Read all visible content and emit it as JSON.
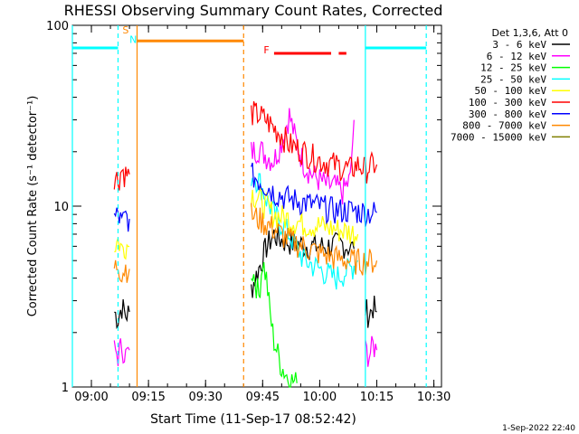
{
  "chart_data": {
    "type": "line",
    "title": "RHESSI Observing Summary Count Rates, Corrected",
    "xlabel": "Start Time (11-Sep-17 08:52:42)",
    "ylabel": "Corrected Count Rate (s⁻¹ detector⁻¹)",
    "yscale": "log",
    "ylim": [
      1,
      100
    ],
    "xlim": [
      "08:55",
      "10:32"
    ],
    "x_ticks": [
      "09:00",
      "09:15",
      "09:30",
      "09:45",
      "10:00",
      "10:15",
      "10:30"
    ],
    "y_ticks": [
      "1",
      "10",
      "100"
    ],
    "timestamp": "1-Sep-2022 22:40",
    "legend": {
      "header": "Det 1,3,6, Att 0",
      "position": "right"
    },
    "series": [
      {
        "name": "3 - 6 keV",
        "color": "#000000",
        "segments": [
          {
            "x": [
              "09:06:00",
              "09:07:00",
              "09:08:00",
              "09:09:00",
              "09:10:00"
            ],
            "y": [
              2.6,
              2.4,
              2.8,
              2.5,
              2.6
            ]
          },
          {
            "x": [
              "09:42:00",
              "09:44:00",
              "09:46:00",
              "09:48:00",
              "09:50:00",
              "09:54:00",
              "09:58:00",
              "10:02:00",
              "10:06:00",
              "10:09:00"
            ],
            "y": [
              3.5,
              4.5,
              6.0,
              7.0,
              6.5,
              6.2,
              6.0,
              6.0,
              6.2,
              5.8
            ]
          },
          {
            "x": [
              "10:12:00",
              "10:13:00",
              "10:14:00",
              "10:15:00"
            ],
            "y": [
              2.7,
              2.5,
              2.8,
              2.6
            ]
          }
        ]
      },
      {
        "name": "6 - 12 keV",
        "color": "#ff00ff",
        "segments": [
          {
            "x": [
              "09:06:00",
              "09:07:00",
              "09:08:00",
              "09:09:00",
              "09:10:00"
            ],
            "y": [
              1.6,
              1.5,
              1.7,
              1.5,
              1.6
            ]
          },
          {
            "x": [
              "09:42:00",
              "09:44:00",
              "09:46:00",
              "09:48:00",
              "09:50:00",
              "09:52:00",
              "09:54:00",
              "09:56:00",
              "09:58:00",
              "10:00:00",
              "10:02:00",
              "10:04:00",
              "10:06:00",
              "10:08:00",
              "10:09:00"
            ],
            "y": [
              20,
              21,
              19,
              18,
              23,
              32,
              22,
              17,
              15,
              14,
              13,
              13,
              12,
              14,
              30
            ]
          },
          {
            "x": [
              "10:12:00",
              "10:13:00",
              "10:14:00",
              "10:15:00"
            ],
            "y": [
              1.6,
              1.5,
              1.7,
              1.6
            ]
          }
        ]
      },
      {
        "name": "12 - 25 keV",
        "color": "#00ff00",
        "segments": [
          {
            "x": [
              "09:42:00",
              "09:43:00",
              "09:44:00",
              "09:45:00",
              "09:46:00",
              "09:47:00",
              "09:48:00",
              "09:50:00",
              "09:52:00",
              "09:54:00"
            ],
            "y": [
              4.5,
              4.0,
              3.2,
              5.0,
              4.0,
              2.5,
              1.8,
              1.3,
              1.1,
              1.05
            ]
          }
        ]
      },
      {
        "name": "25 - 50 keV",
        "color": "#00ffff",
        "segments": [
          {
            "x": [
              "09:42:00",
              "09:44:00",
              "09:46:00",
              "09:48:00",
              "09:50:00",
              "09:52:00",
              "09:56:00",
              "10:00:00",
              "10:04:00",
              "10:08:00",
              "10:10:00"
            ],
            "y": [
              15,
              14,
              11,
              9,
              8,
              7,
              5,
              4.5,
              4,
              4.5,
              5
            ]
          }
        ]
      },
      {
        "name": "50 - 100 keV",
        "color": "#ffff00",
        "segments": [
          {
            "x": [
              "09:06:00",
              "09:07:00",
              "09:08:00",
              "09:09:00",
              "09:10:00"
            ],
            "y": [
              6,
              6.5,
              5.8,
              6.2,
              6
            ]
          },
          {
            "x": [
              "09:42:00",
              "09:44:00",
              "09:46:00",
              "09:48:00",
              "09:52:00",
              "09:56:00",
              "10:00:00",
              "10:04:00",
              "10:08:00",
              "10:10:00"
            ],
            "y": [
              12,
              11,
              10,
              9,
              8.5,
              8,
              7.8,
              7.5,
              7.2,
              7
            ]
          }
        ]
      },
      {
        "name": "100 - 300 keV",
        "color": "#ff0000",
        "segments": [
          {
            "x": [
              "09:06:00",
              "09:07:00",
              "09:08:00",
              "09:09:00",
              "09:10:00"
            ],
            "y": [
              15,
              14,
              16,
              15,
              15
            ]
          },
          {
            "x": [
              "09:42:00",
              "09:44:00",
              "09:46:00",
              "09:48:00",
              "09:50:00",
              "09:52:00",
              "09:56:00",
              "10:00:00",
              "10:04:00",
              "10:08:00",
              "10:10:00",
              "10:12:00",
              "10:14:00",
              "10:15:00"
            ],
            "y": [
              33,
              32,
              30,
              27,
              25,
              22,
              20,
              18,
              17,
              16,
              17,
              16,
              17,
              17
            ]
          }
        ]
      },
      {
        "name": "300 - 800 keV",
        "color": "#0000ff",
        "segments": [
          {
            "x": [
              "09:06:00",
              "09:07:00",
              "09:08:00",
              "09:09:00",
              "09:10:00"
            ],
            "y": [
              8.5,
              9,
              8,
              8.8,
              8.5
            ]
          },
          {
            "x": [
              "09:42:00",
              "09:44:00",
              "09:46:00",
              "09:48:00",
              "09:52:00",
              "09:56:00",
              "10:00:00",
              "10:04:00",
              "10:08:00",
              "10:12:00",
              "10:15:00"
            ],
            "y": [
              15,
              14,
              13,
              12,
              11,
              10.5,
              10,
              9.5,
              9.5,
              9.3,
              9.2
            ]
          }
        ]
      },
      {
        "name": "800 - 7000 keV",
        "color": "#ff8800",
        "segments": [
          {
            "x": [
              "09:06:00",
              "09:07:00",
              "09:08:00",
              "09:09:00",
              "09:10:00"
            ],
            "y": [
              4.5,
              4.8,
              4.3,
              4.6,
              4.5
            ]
          },
          {
            "x": [
              "09:42:00",
              "09:44:00",
              "09:46:00",
              "09:48:00",
              "09:52:00",
              "09:56:00",
              "10:00:00",
              "10:04:00",
              "10:08:00",
              "10:12:00",
              "10:15:00"
            ],
            "y": [
              9,
              8.5,
              8,
              7.5,
              6.5,
              6,
              5.5,
              5.2,
              5,
              5,
              5
            ]
          }
        ]
      },
      {
        "name": "7000 - 15000 keV",
        "color": "#808000",
        "segments": []
      }
    ],
    "overlays": [
      {
        "kind": "hline",
        "color": "#00ffff",
        "y": 75,
        "segments": [
          [
            "08:55",
            "09:07"
          ],
          [
            "10:12",
            "10:28"
          ]
        ]
      },
      {
        "kind": "hline",
        "color": "#ff8800",
        "y": 82,
        "segments": [
          [
            "09:12",
            "09:40"
          ]
        ]
      },
      {
        "kind": "hline",
        "color": "#ff0000",
        "y": 70,
        "segments": [
          [
            "09:48",
            "10:03"
          ],
          [
            "10:05",
            "10:07"
          ]
        ]
      },
      {
        "kind": "vline",
        "color": "#00ffff",
        "dashed": true,
        "x": "09:07"
      },
      {
        "kind": "vline",
        "color": "#ff8800",
        "dashed": false,
        "x": "09:12"
      },
      {
        "kind": "vline",
        "color": "#ff8800",
        "dashed": true,
        "x": "09:40"
      },
      {
        "kind": "vline",
        "color": "#00ffff",
        "dashed": false,
        "x": "10:12"
      },
      {
        "kind": "vline",
        "color": "#00ffff",
        "dashed": true,
        "x": "10:28"
      },
      {
        "kind": "vline",
        "color": "#00ffff",
        "dashed": false,
        "x": "08:55"
      }
    ],
    "annotations": [
      {
        "text": "S",
        "color": "#ff8800",
        "x": "09:09",
        "y": 90
      },
      {
        "text": "N",
        "color": "#00ffff",
        "x": "09:11",
        "y": 80
      },
      {
        "text": "F",
        "color": "#ff0000",
        "x": "09:46",
        "y": 70
      }
    ]
  }
}
